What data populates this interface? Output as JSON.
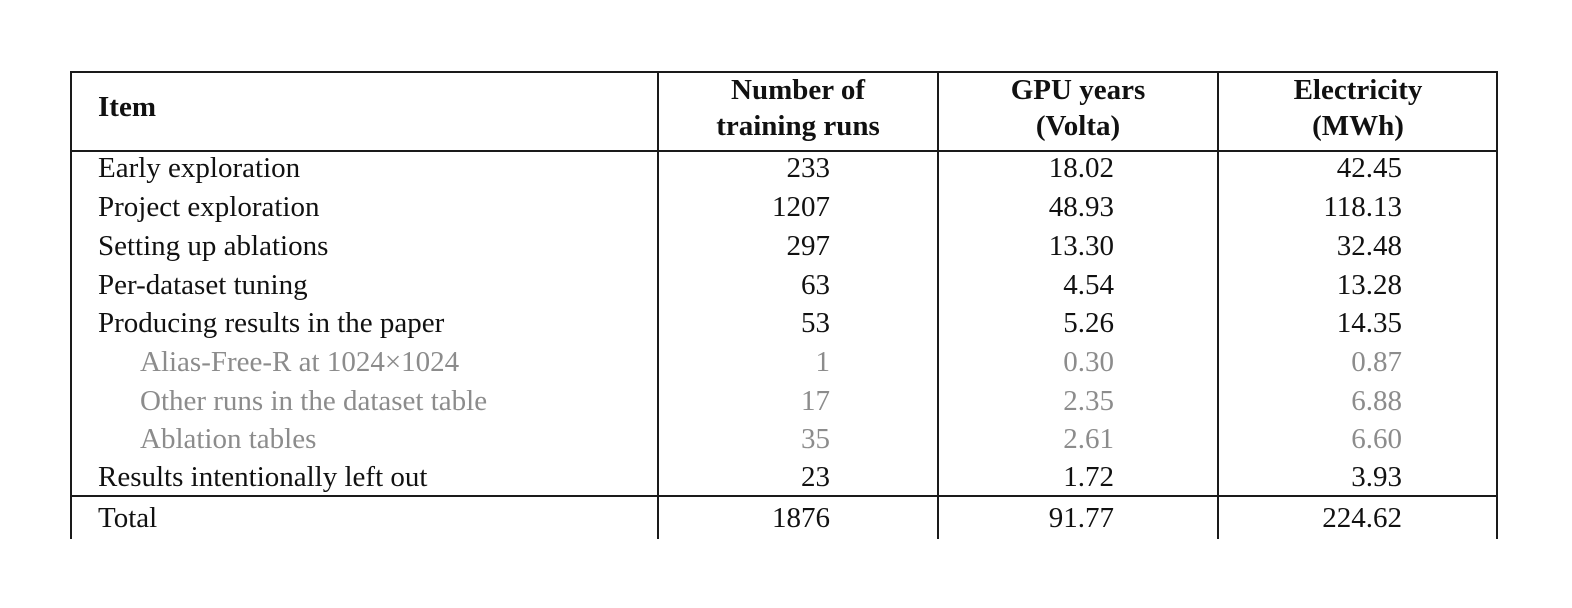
{
  "table": {
    "headers": {
      "item": [
        "Item"
      ],
      "runs": [
        "Number of",
        "training runs"
      ],
      "gpu": [
        "GPU years",
        "(Volta)"
      ],
      "electricity": [
        "Electricity",
        "(MWh)"
      ]
    },
    "rows": [
      {
        "item": "Early exploration",
        "runs": "233",
        "gpu": "18.02",
        "electricity": "42.45",
        "sub": false
      },
      {
        "item": "Project exploration",
        "runs": "1207",
        "gpu": "48.93",
        "electricity": "118.13",
        "sub": false
      },
      {
        "item": "Setting up ablations",
        "runs": "297",
        "gpu": "13.30",
        "electricity": "32.48",
        "sub": false
      },
      {
        "item": "Per-dataset tuning",
        "runs": "63",
        "gpu": "4.54",
        "electricity": "13.28",
        "sub": false
      },
      {
        "item": "Producing results in the paper",
        "runs": "53",
        "gpu": "5.26",
        "electricity": "14.35",
        "sub": false
      },
      {
        "item": "Alias-Free-R at 1024×1024",
        "runs": "1",
        "gpu": "0.30",
        "electricity": "0.87",
        "sub": true
      },
      {
        "item": "Other runs in the dataset table",
        "runs": "17",
        "gpu": "2.35",
        "electricity": "6.88",
        "sub": true
      },
      {
        "item": "Ablation tables",
        "runs": "35",
        "gpu": "2.61",
        "electricity": "6.60",
        "sub": true
      },
      {
        "item": "Results intentionally left out",
        "runs": "23",
        "gpu": "1.72",
        "electricity": "3.93",
        "sub": false
      }
    ],
    "total": {
      "item": "Total",
      "runs": "1876",
      "gpu": "91.77",
      "electricity": "224.62"
    }
  },
  "colors": {
    "text": "#111111",
    "subtext": "#8c8c8c",
    "rule": "#1a1a1a"
  }
}
